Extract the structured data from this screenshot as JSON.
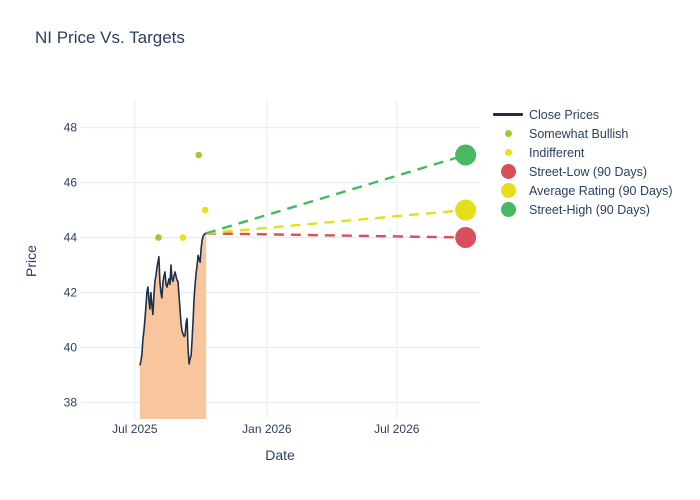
{
  "title": "NI Price Vs. Targets",
  "chart_data": {
    "type": "line",
    "title": "NI Price Vs. Targets",
    "xlabel": "Date",
    "ylabel": "Price",
    "ylim": [
      37.4,
      49.0
    ],
    "xrange": [
      "2025-04-17",
      "2026-10-25"
    ],
    "grid": true,
    "legend_position": "right-top",
    "yticks": [
      38,
      40,
      42,
      44,
      46,
      48
    ],
    "xticks": [
      {
        "date": "2025-07-01",
        "label": "Jul 2025"
      },
      {
        "date": "2026-01-01",
        "label": "Jan 2026"
      },
      {
        "date": "2026-07-01",
        "label": "Jul 2026"
      }
    ],
    "close_prices": {
      "name": "Close Prices",
      "line_color": "#20304a",
      "fill_color": "#f9c59c",
      "start_date": "2025-07-08",
      "step_days": 1.4,
      "values": [
        39.35,
        39.5,
        39.75,
        40.3,
        40.6,
        41.0,
        41.5,
        42.0,
        42.2,
        41.75,
        41.4,
        42.0,
        41.55,
        41.2,
        41.9,
        42.4,
        42.6,
        42.9,
        43.1,
        43.3,
        42.4,
        42.0,
        41.8,
        42.4,
        42.6,
        42.75,
        42.3,
        42.2,
        42.35,
        42.5,
        42.3,
        43.0,
        42.5,
        42.4,
        42.6,
        42.75,
        42.6,
        42.45,
        42.4,
        41.9,
        41.4,
        40.9,
        40.6,
        40.5,
        40.4,
        40.45,
        40.9,
        41.05,
        39.9,
        39.4,
        39.6,
        39.7,
        40.3,
        41.0,
        41.8,
        42.3,
        42.7,
        43.0,
        43.35,
        43.2,
        43.1,
        43.6,
        43.9,
        44.05,
        44.1,
        44.15,
        44.15
      ]
    },
    "ratings": [
      {
        "name": "Somewhat Bullish",
        "color": "#9acd32",
        "points": [
          {
            "date": "2025-08-03",
            "value": 44
          },
          {
            "date": "2025-09-28",
            "value": 47
          }
        ]
      },
      {
        "name": "Indifferent",
        "color": "#e5e319",
        "points": [
          {
            "date": "2025-09-06",
            "value": 44
          },
          {
            "date": "2025-10-07",
            "value": 45
          }
        ]
      }
    ],
    "projection_start": {
      "date": "2025-10-08",
      "value": 44.15
    },
    "targets": [
      {
        "name": "Street-Low (90 Days)",
        "color": "#d8505a",
        "date": "2026-10-05",
        "value": 44
      },
      {
        "name": "Average Rating (90 Days)",
        "color": "#e3df1a",
        "date": "2026-10-05",
        "value": 45
      },
      {
        "name": "Street-High (90 Days)",
        "color": "#47b960",
        "date": "2026-10-05",
        "value": 47
      }
    ]
  },
  "legend": {
    "items": [
      {
        "label": "Close Prices",
        "marker": "line",
        "color": "#20304a"
      },
      {
        "label": "Somewhat Bullish",
        "marker": "dot",
        "color": "#9acd32"
      },
      {
        "label": "Indifferent",
        "marker": "dot",
        "color": "#e5e319"
      },
      {
        "label": "Street-Low (90 Days)",
        "marker": "circle",
        "color": "#d8505a"
      },
      {
        "label": "Average Rating (90 Days)",
        "marker": "circle",
        "color": "#e3df1a"
      },
      {
        "label": "Street-High (90 Days)",
        "marker": "circle",
        "color": "#47b960"
      }
    ]
  },
  "style": {
    "text_color": "#2a3f5f",
    "h_grid_color": "#e7edf7",
    "v_grid_color": "#eef0f3",
    "background": "#ffffff"
  }
}
